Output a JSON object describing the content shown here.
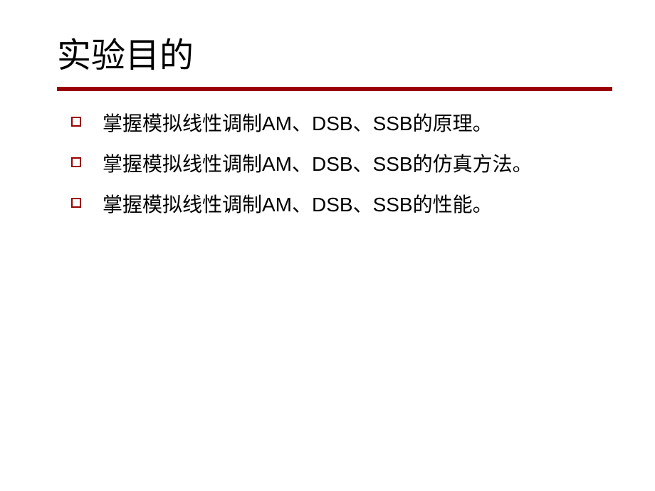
{
  "slide": {
    "title": "实验目的",
    "title_fontsize": 48,
    "underline_color": "#9b0000",
    "bg_color": "#ffffff",
    "text_color": "#000000",
    "bullet_border_color": "#9b0000",
    "body_fontsize": 28,
    "items": [
      {
        "text": "掌握模拟线性调制AM、DSB、SSB的原理。"
      },
      {
        "text": "掌握模拟线性调制AM、DSB、SSB的仿真方法。"
      },
      {
        "text": "掌握模拟线性调制AM、DSB、SSB的性能。"
      }
    ]
  }
}
